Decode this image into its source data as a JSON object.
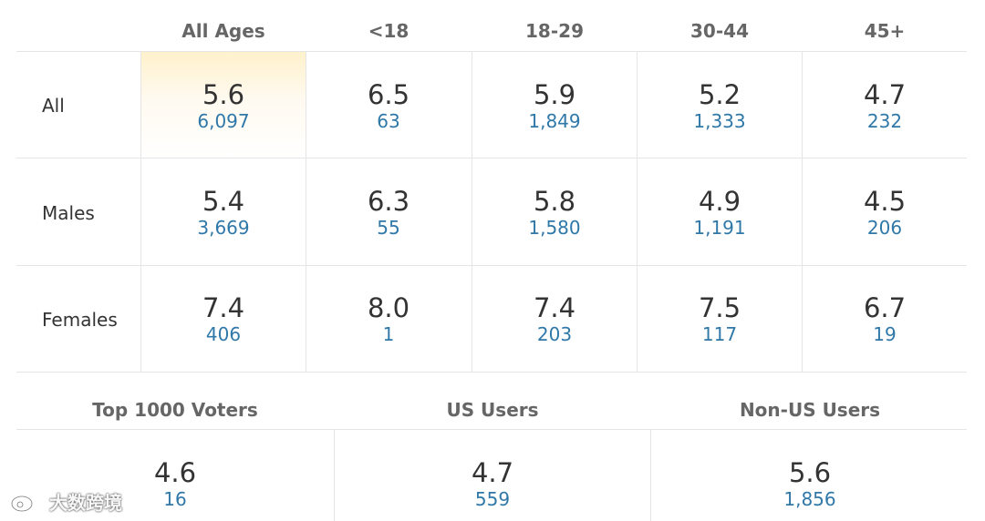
{
  "columns": [
    "All Ages",
    "<18",
    "18-29",
    "30-44",
    "45+"
  ],
  "rows": [
    {
      "label": "All",
      "cells": [
        {
          "rating": "5.6",
          "votes": "6,097"
        },
        {
          "rating": "6.5",
          "votes": "63"
        },
        {
          "rating": "5.9",
          "votes": "1,849"
        },
        {
          "rating": "5.2",
          "votes": "1,333"
        },
        {
          "rating": "4.7",
          "votes": "232"
        }
      ]
    },
    {
      "label": "Males",
      "cells": [
        {
          "rating": "5.4",
          "votes": "3,669"
        },
        {
          "rating": "6.3",
          "votes": "55"
        },
        {
          "rating": "5.8",
          "votes": "1,580"
        },
        {
          "rating": "4.9",
          "votes": "1,191"
        },
        {
          "rating": "4.5",
          "votes": "206"
        }
      ]
    },
    {
      "label": "Females",
      "cells": [
        {
          "rating": "7.4",
          "votes": "406"
        },
        {
          "rating": "8.0",
          "votes": "1"
        },
        {
          "rating": "7.4",
          "votes": "203"
        },
        {
          "rating": "7.5",
          "votes": "117"
        },
        {
          "rating": "6.7",
          "votes": "19"
        }
      ]
    }
  ],
  "bottom": [
    {
      "label": "Top 1000 Voters",
      "rating": "4.6",
      "votes": "16"
    },
    {
      "label": "US Users",
      "rating": "4.7",
      "votes": "559"
    },
    {
      "label": "Non-US Users",
      "rating": "5.6",
      "votes": "1,856"
    }
  ],
  "colors": {
    "votes_link": "#2f78a8",
    "highlight": "#fff1cc",
    "header_text": "#666666"
  },
  "watermark": {
    "text": "大数跨境",
    "icon": "weibo-logo-icon"
  }
}
